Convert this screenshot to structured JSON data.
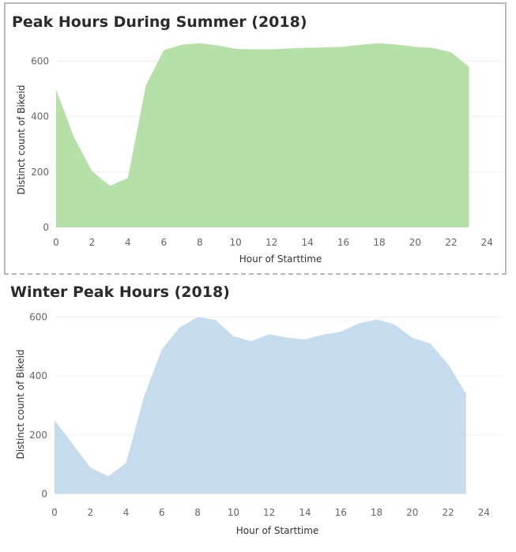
{
  "chart_data": [
    {
      "type": "area",
      "title": "Peak Hours During Summer (2018)",
      "xlabel": "Hour of Starttime",
      "ylabel": "Distinct count of Bikeid",
      "x": [
        0,
        1,
        2,
        3,
        4,
        5,
        6,
        7,
        8,
        9,
        10,
        11,
        12,
        13,
        14,
        15,
        16,
        17,
        18,
        19,
        20,
        21,
        22,
        23
      ],
      "y": [
        498,
        325,
        203,
        150,
        178,
        513,
        640,
        660,
        665,
        657,
        645,
        643,
        643,
        646,
        649,
        650,
        652,
        660,
        665,
        660,
        652,
        648,
        632,
        580
      ],
      "xlim": [
        0,
        25
      ],
      "ylim": [
        -20,
        650
      ],
      "xticks": [
        0,
        2,
        4,
        6,
        8,
        10,
        12,
        14,
        16,
        18,
        20,
        22,
        24
      ],
      "yticks": [
        0,
        200,
        400,
        600
      ],
      "color": "#b5e0a8",
      "grid": true
    },
    {
      "type": "area",
      "title": "Winter Peak Hours (2018)",
      "xlabel": "Hour of Starttime",
      "ylabel": "Distinct count of Bikeid",
      "x": [
        0,
        1,
        2,
        3,
        4,
        5,
        6,
        7,
        8,
        9,
        10,
        11,
        12,
        13,
        14,
        15,
        16,
        17,
        18,
        19,
        20,
        21,
        22,
        23
      ],
      "y": [
        250,
        170,
        90,
        60,
        105,
        330,
        490,
        565,
        600,
        590,
        535,
        518,
        542,
        530,
        524,
        540,
        550,
        578,
        592,
        575,
        530,
        510,
        440,
        340
      ],
      "xlim": [
        0,
        25
      ],
      "ylim": [
        -20,
        620
      ],
      "xticks": [
        0,
        2,
        4,
        6,
        8,
        10,
        12,
        14,
        16,
        18,
        20,
        22,
        24
      ],
      "yticks": [
        0,
        200,
        400,
        600
      ],
      "color": "#c4dcee",
      "grid": true
    }
  ]
}
